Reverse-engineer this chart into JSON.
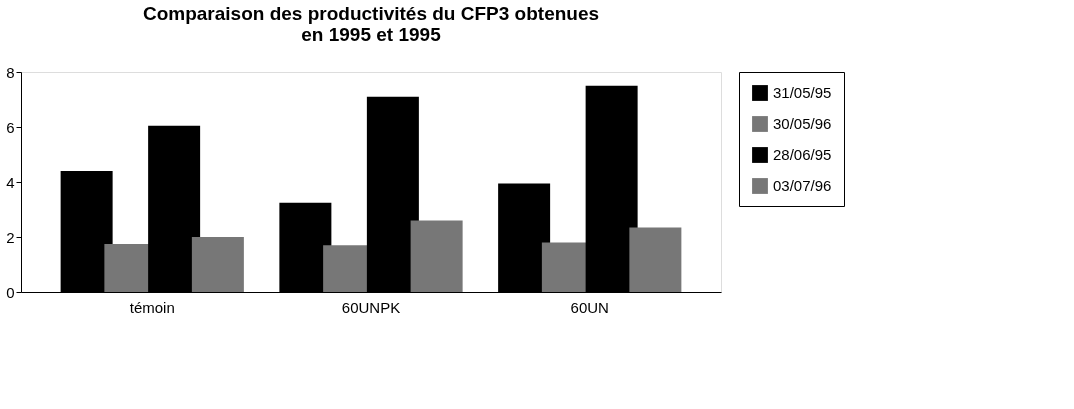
{
  "chart_data": {
    "type": "bar",
    "title": "Comparaison des productivités du CFP3 obtenues en 1995 et 1995",
    "categories": [
      "témoin",
      "60UNPK",
      "60UN"
    ],
    "series": [
      {
        "name": "31/05/95",
        "color": "#000000",
        "values": [
          4.4,
          3.25,
          3.95
        ]
      },
      {
        "name": "30/05/96",
        "color": "#777777",
        "values": [
          1.75,
          1.7,
          1.8
        ]
      },
      {
        "name": "28/06/95",
        "color": "#000000",
        "values": [
          6.05,
          7.1,
          7.5
        ]
      },
      {
        "name": "03/07/96",
        "color": "#777777",
        "values": [
          2.0,
          2.6,
          2.35
        ]
      }
    ],
    "ylim": [
      0,
      8
    ],
    "yticks": [
      0,
      2,
      4,
      6,
      8
    ],
    "grid": false,
    "legend": "right"
  }
}
